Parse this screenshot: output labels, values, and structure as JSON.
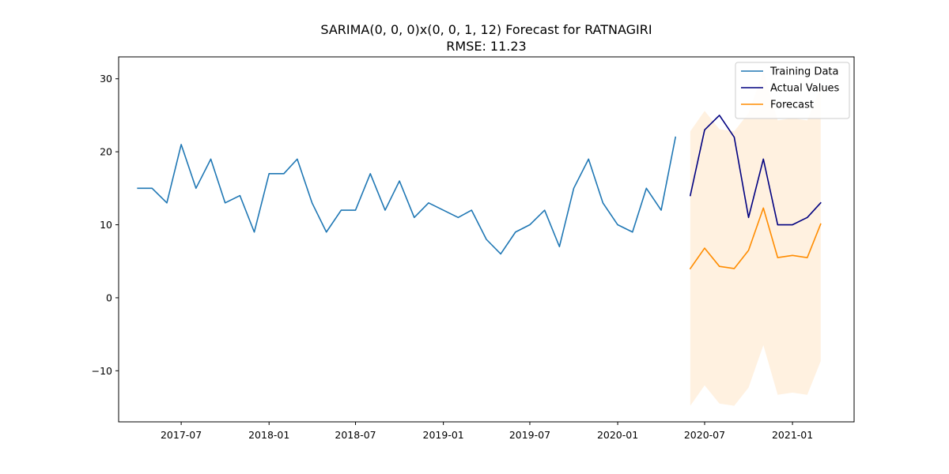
{
  "chart_data": {
    "type": "line",
    "title": "SARIMA(0, 0, 0)x(0, 0, 1, 12) Forecast for RATNAGIRI",
    "subtitle": "RMSE: 11.23",
    "xlabel": "",
    "ylabel": "",
    "xlim": [
      "2017-02-20",
      "2021-05-10"
    ],
    "ylim": [
      -17,
      33
    ],
    "x_ticks": [
      "2017-07",
      "2018-01",
      "2018-07",
      "2019-01",
      "2019-07",
      "2020-01",
      "2020-07",
      "2021-01"
    ],
    "y_ticks": [
      -10,
      0,
      10,
      20,
      30
    ],
    "y_tick_labels": [
      "−10",
      "0",
      "10",
      "20",
      "30"
    ],
    "grid": false,
    "legend_position": "top-right",
    "series": [
      {
        "name": "Training Data",
        "color": "#1f77b4",
        "x": [
          "2017-04",
          "2017-05",
          "2017-06",
          "2017-07",
          "2017-08",
          "2017-09",
          "2017-10",
          "2017-11",
          "2017-12",
          "2018-01",
          "2018-02",
          "2018-03",
          "2018-04",
          "2018-05",
          "2018-06",
          "2018-07",
          "2018-08",
          "2018-09",
          "2018-10",
          "2018-11",
          "2018-12",
          "2019-01",
          "2019-02",
          "2019-03",
          "2019-04",
          "2019-05",
          "2019-06",
          "2019-07",
          "2019-08",
          "2019-09",
          "2019-10",
          "2019-11",
          "2019-12",
          "2020-01",
          "2020-02",
          "2020-03",
          "2020-04",
          "2020-05"
        ],
        "values": [
          15,
          15,
          13,
          21,
          15,
          19,
          13,
          14,
          9,
          17,
          17,
          19,
          13,
          9,
          12,
          12,
          17,
          12,
          16,
          11,
          13,
          12,
          11,
          12,
          8,
          6,
          9,
          10,
          12,
          7,
          15,
          19,
          13,
          10,
          9,
          15,
          12,
          22
        ]
      },
      {
        "name": "Actual Values",
        "color": "#000080",
        "x": [
          "2020-06",
          "2020-07",
          "2020-08",
          "2020-09",
          "2020-10",
          "2020-11",
          "2020-12",
          "2021-01",
          "2021-02",
          "2021-03"
        ],
        "values": [
          14,
          23,
          25,
          22,
          11,
          19,
          10,
          10,
          11,
          13
        ]
      },
      {
        "name": "Forecast",
        "color": "#ff8c00",
        "x": [
          "2020-06",
          "2020-07",
          "2020-08",
          "2020-09",
          "2020-10",
          "2020-11",
          "2020-12",
          "2021-01",
          "2021-02",
          "2021-03"
        ],
        "values": [
          4,
          6.8,
          4.3,
          4,
          6.5,
          12.3,
          5.5,
          5.8,
          5.5,
          10.1
        ]
      }
    ],
    "confidence_band": {
      "color": "#ff8c00",
      "opacity": 0.12,
      "x": [
        "2020-06",
        "2020-07",
        "2020-08",
        "2020-09",
        "2020-10",
        "2020-11",
        "2020-12",
        "2021-01",
        "2021-02",
        "2021-03"
      ],
      "upper": [
        22.8,
        25.6,
        23.1,
        22.8,
        25.3,
        31.1,
        24.3,
        24.6,
        24.3,
        28.9
      ],
      "lower": [
        -14.8,
        -12,
        -14.5,
        -14.8,
        -12.3,
        -6.5,
        -13.3,
        -13,
        -13.3,
        -8.7
      ]
    }
  }
}
